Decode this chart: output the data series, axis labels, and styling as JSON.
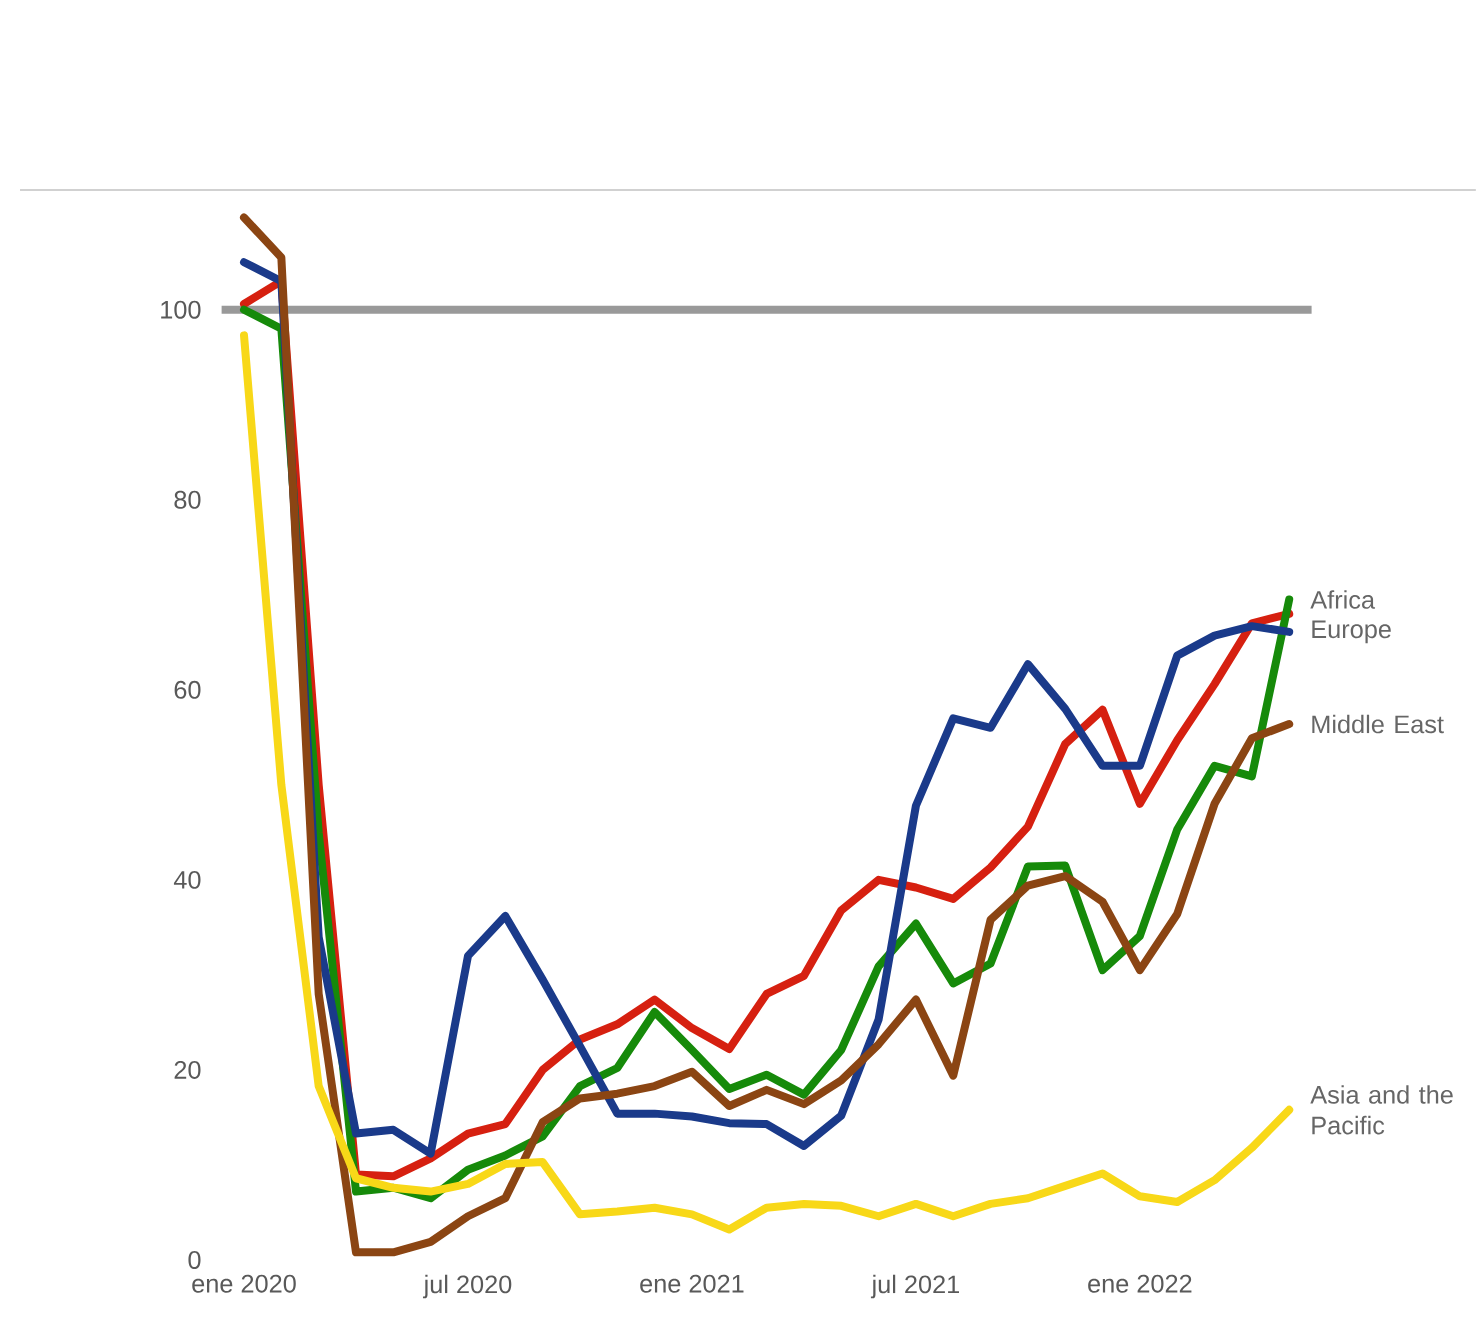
{
  "chart_data": {
    "type": "line",
    "categories": [
      "ene 2020",
      null,
      null,
      null,
      null,
      null,
      "jul 2020",
      null,
      null,
      null,
      null,
      null,
      "ene 2021",
      null,
      null,
      null,
      null,
      null,
      "jul 2021",
      null,
      null,
      null,
      null,
      null,
      "ene 2022",
      null,
      null,
      null,
      null
    ],
    "series": [
      {
        "color": "#d62010",
        "values": [
          100.6,
          103,
          50,
          9,
          8.8,
          10.7,
          13.3,
          14.3,
          20,
          23.2,
          24.8,
          27.4,
          24.4,
          22.2,
          28,
          29.9,
          36.8,
          40,
          39.2,
          38,
          41.3,
          45.6,
          54.3,
          57.9,
          48,
          54.7,
          60.6,
          67,
          68
        ]
      },
      {
        "name": "Africa",
        "color": "#168a0a",
        "values": [
          100,
          98,
          45,
          7.2,
          7.6,
          6.5,
          9.5,
          11,
          13,
          18.3,
          20.2,
          26.1,
          22.1,
          18,
          19.5,
          17.4,
          22.1,
          30.9,
          35.4,
          29.1,
          31.2,
          41.4,
          41.5,
          30.5,
          34.1,
          45.3,
          52,
          50.9,
          69.5
        ]
      },
      {
        "name": "Europe",
        "color": "#1a3a8a",
        "values": [
          105,
          103,
          34,
          13.3,
          13.7,
          11.2,
          32,
          36.2,
          29.5,
          22.5,
          15.4,
          15.4,
          15.1,
          14.4,
          14.3,
          12,
          15.2,
          25.3,
          47.8,
          57,
          56,
          62.7,
          58,
          52,
          52,
          63.6,
          65.7,
          66.7,
          66.1
        ]
      },
      {
        "name": "Middle East",
        "color": "#8b4513",
        "values": [
          109.7,
          105.5,
          28,
          0.8,
          0.8,
          1.9,
          4.6,
          6.5,
          14.5,
          17,
          17.5,
          18.3,
          19.8,
          16.2,
          17.9,
          16.4,
          18.9,
          22.7,
          27.4,
          19.4,
          35.8,
          39.4,
          40.4,
          37.7,
          30.5,
          36.4,
          48,
          54.9,
          56.4
        ]
      },
      {
        "name": "Asia and the Pacific",
        "color": "#f8d818",
        "values": [
          97.3,
          50,
          18.3,
          8.6,
          7.6,
          7.2,
          8,
          10.1,
          10.3,
          4.8,
          5.1,
          5.5,
          4.8,
          3.2,
          5.5,
          5.9,
          5.7,
          4.6,
          5.9,
          4.6,
          5.9,
          6.5,
          7.8,
          9.1,
          6.7,
          6.1,
          8.4,
          11.8,
          15.8
        ]
      }
    ],
    "ylim": [
      0,
      112.6
    ],
    "yticks": [
      0,
      20,
      40,
      60,
      80,
      100
    ],
    "ref_lines": [
      {
        "axis": "y",
        "value": 100,
        "color": "#999999"
      }
    ],
    "legend": false,
    "marker": "none",
    "line_style": "solid"
  }
}
